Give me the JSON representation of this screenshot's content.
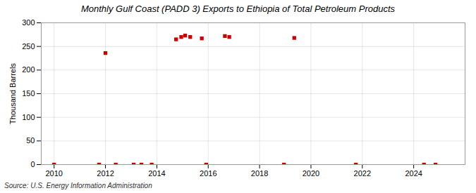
{
  "chart_data": {
    "type": "scatter",
    "title": "Monthly Gulf Coast (PADD 3) Exports to Ethiopia of Total Petroleum Products",
    "ylabel": "Thousand Barrels",
    "annotations": [
      "Source: U.S. Energy Information Administration"
    ],
    "x": [
      2010.0,
      2011.75,
      2012.0,
      2012.4,
      2013.1,
      2013.4,
      2013.8,
      2014.75,
      2014.95,
      2015.1,
      2015.3,
      2015.75,
      2015.92,
      2016.65,
      2016.82,
      2018.95,
      2019.35,
      2021.75,
      2024.4,
      2024.85
    ],
    "values": [
      0,
      0,
      236,
      0,
      0,
      0,
      0,
      265,
      270,
      273,
      270,
      267,
      0,
      272,
      270,
      0,
      268,
      0,
      0,
      0
    ],
    "color": "#cc0000",
    "marker": "square",
    "xlim": [
      2009.5,
      2026.0
    ],
    "ylim": [
      0,
      300
    ],
    "xticks": [
      2010,
      2012,
      2014,
      2016,
      2018,
      2020,
      2022,
      2024
    ],
    "yticks": [
      0,
      50,
      100,
      150,
      200,
      250,
      300
    ],
    "grid": true
  }
}
